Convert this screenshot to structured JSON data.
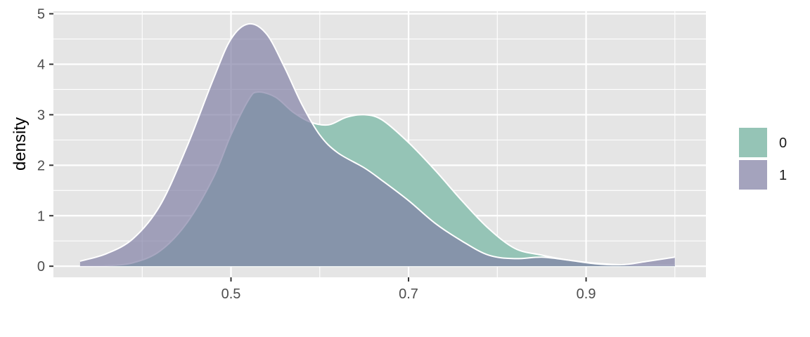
{
  "chart_data": {
    "type": "area",
    "title": "",
    "xlabel": "",
    "ylabel": "density",
    "xlim": [
      0.3,
      1.035
    ],
    "ylim": [
      -0.22,
      5.05
    ],
    "x_ticks": [
      0.5,
      0.7,
      0.9
    ],
    "x_tick_labels": [
      "0.5",
      "0.7",
      "0.9"
    ],
    "y_ticks": [
      0,
      1,
      2,
      3,
      4,
      5
    ],
    "y_tick_labels": [
      "0",
      "1",
      "2",
      "3",
      "4",
      "5"
    ],
    "grid": true,
    "legend_position": "right",
    "series": [
      {
        "name": "0",
        "color": "#95c4b6",
        "points": [
          [
            0.33,
            0.0
          ],
          [
            0.36,
            0.01
          ],
          [
            0.39,
            0.07
          ],
          [
            0.42,
            0.3
          ],
          [
            0.45,
            0.85
          ],
          [
            0.48,
            1.75
          ],
          [
            0.5,
            2.6
          ],
          [
            0.52,
            3.3
          ],
          [
            0.53,
            3.45
          ],
          [
            0.55,
            3.35
          ],
          [
            0.57,
            3.05
          ],
          [
            0.59,
            2.85
          ],
          [
            0.61,
            2.8
          ],
          [
            0.63,
            2.95
          ],
          [
            0.65,
            3.0
          ],
          [
            0.67,
            2.9
          ],
          [
            0.7,
            2.45
          ],
          [
            0.73,
            1.9
          ],
          [
            0.76,
            1.3
          ],
          [
            0.79,
            0.75
          ],
          [
            0.82,
            0.35
          ],
          [
            0.85,
            0.22
          ],
          [
            0.88,
            0.12
          ],
          [
            0.91,
            0.06
          ],
          [
            0.94,
            0.03
          ],
          [
            0.97,
            0.02
          ],
          [
            1.0,
            0.02
          ]
        ]
      },
      {
        "name": "1",
        "color": "#7f7da3",
        "points": [
          [
            0.33,
            0.1
          ],
          [
            0.36,
            0.25
          ],
          [
            0.39,
            0.55
          ],
          [
            0.42,
            1.2
          ],
          [
            0.45,
            2.35
          ],
          [
            0.48,
            3.7
          ],
          [
            0.5,
            4.5
          ],
          [
            0.52,
            4.8
          ],
          [
            0.54,
            4.6
          ],
          [
            0.56,
            3.95
          ],
          [
            0.58,
            3.2
          ],
          [
            0.6,
            2.6
          ],
          [
            0.62,
            2.25
          ],
          [
            0.65,
            1.95
          ],
          [
            0.67,
            1.7
          ],
          [
            0.7,
            1.3
          ],
          [
            0.73,
            0.85
          ],
          [
            0.76,
            0.5
          ],
          [
            0.79,
            0.22
          ],
          [
            0.82,
            0.15
          ],
          [
            0.85,
            0.18
          ],
          [
            0.88,
            0.12
          ],
          [
            0.91,
            0.05
          ],
          [
            0.94,
            0.03
          ],
          [
            0.97,
            0.1
          ],
          [
            1.0,
            0.18
          ]
        ]
      }
    ],
    "legend": [
      {
        "label": "0",
        "color": "#95c4b6"
      },
      {
        "label": "1",
        "color": "#7f7da3"
      }
    ]
  },
  "colors": {
    "panel_background": "#e5e5e5",
    "grid_line": "#ffffff",
    "overlap_fill": "#58688a"
  }
}
